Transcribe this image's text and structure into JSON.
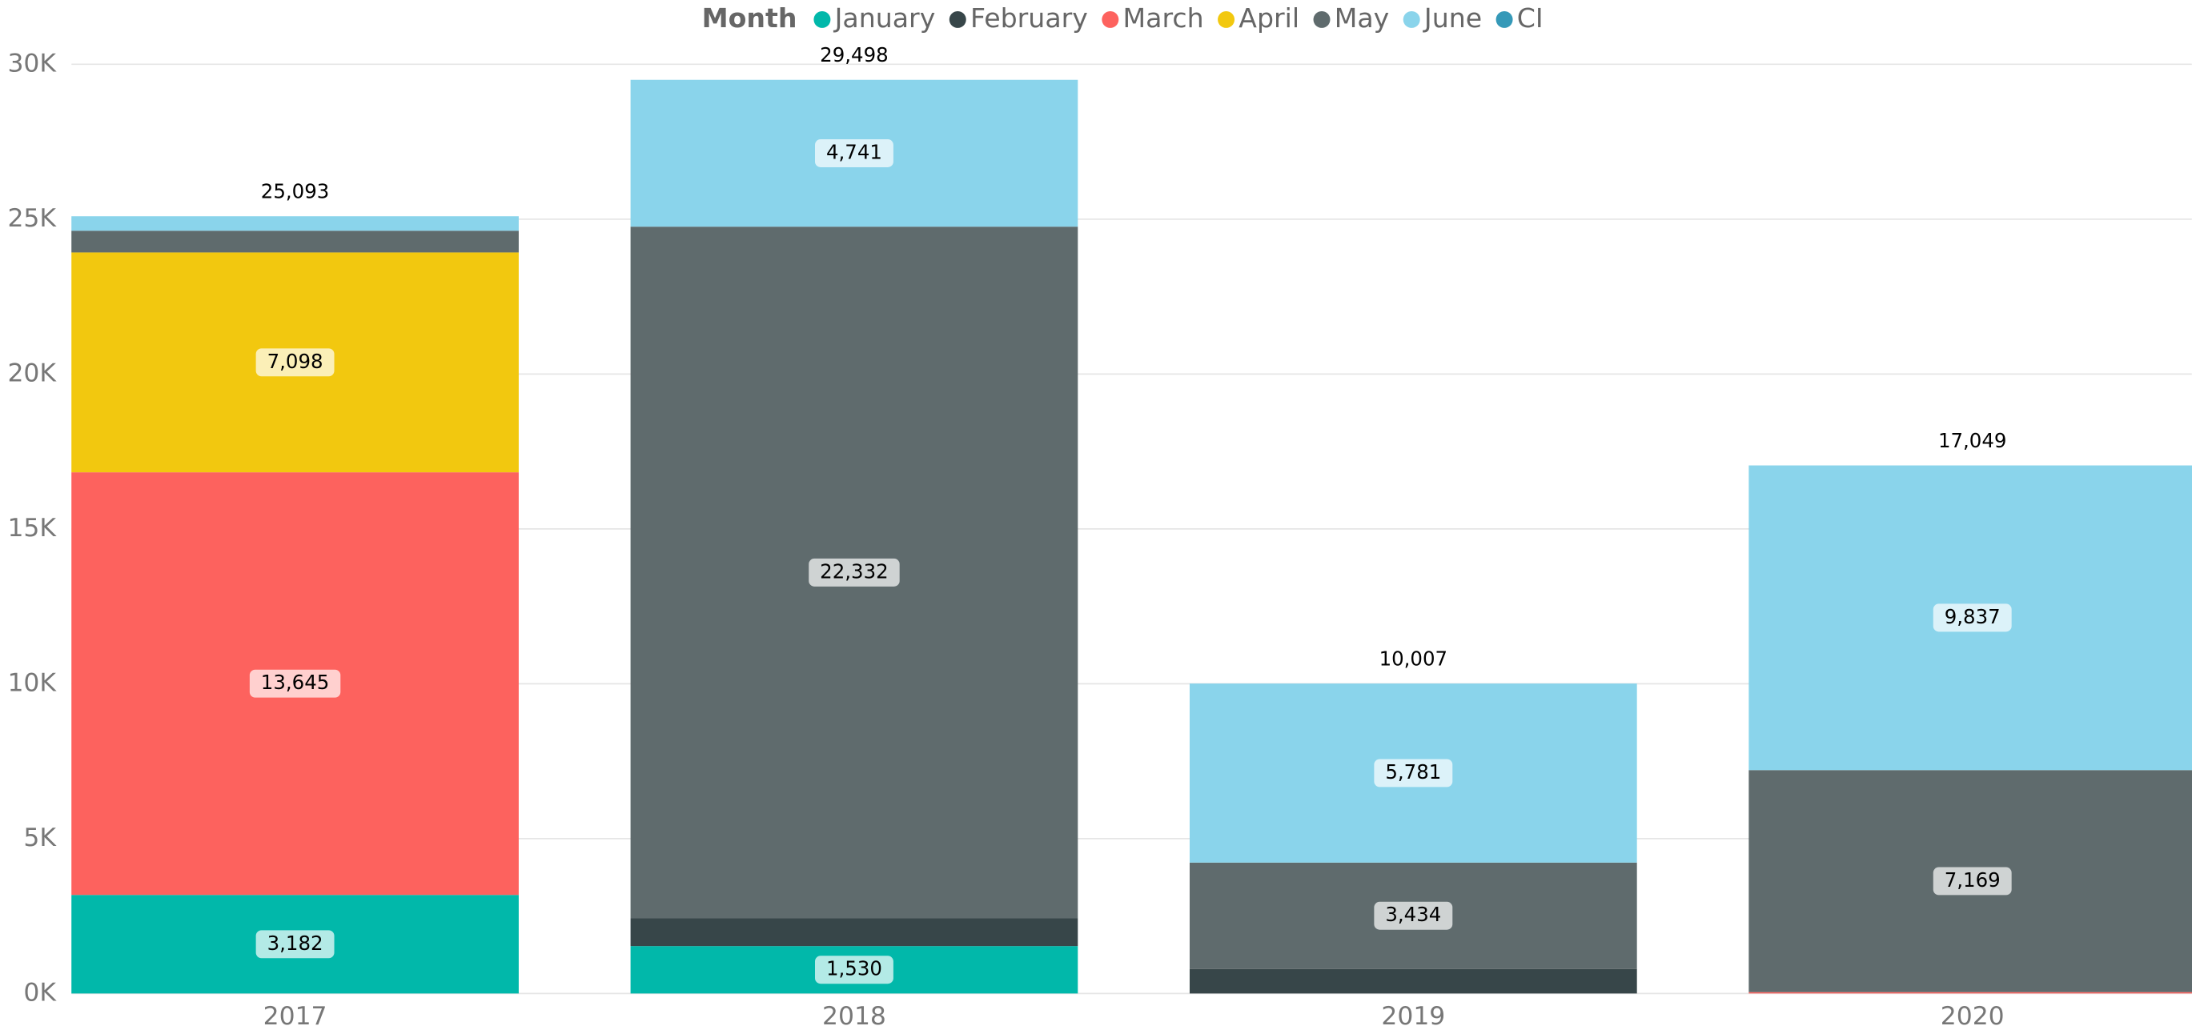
{
  "chart_data": {
    "type": "stacked_bar",
    "legend_title": "Month",
    "categories": [
      "2017",
      "2018",
      "2019",
      "2020"
    ],
    "series": [
      {
        "name": "January",
        "color": "#01B8AA",
        "values": [
          3182,
          1530,
          null,
          null
        ],
        "value_labels": [
          "3,182",
          "1,530",
          null,
          null
        ]
      },
      {
        "name": "February",
        "color": "#374649",
        "values": [
          null,
          895,
          792,
          null
        ],
        "value_labels": [
          null,
          null,
          null,
          null
        ]
      },
      {
        "name": "March",
        "color": "#FD625E",
        "values": [
          13645,
          null,
          null,
          43
        ],
        "value_labels": [
          "13,645",
          null,
          null,
          null
        ]
      },
      {
        "name": "April",
        "color": "#F2C80F",
        "values": [
          7098,
          null,
          null,
          null
        ],
        "value_labels": [
          "7,098",
          null,
          null,
          null
        ]
      },
      {
        "name": "May",
        "color": "#5F6B6D",
        "values": [
          700,
          22332,
          3434,
          7169
        ],
        "value_labels": [
          null,
          "22,332",
          "3,434",
          "7,169"
        ]
      },
      {
        "name": "June",
        "color": "#8AD4EB",
        "values": [
          468,
          4741,
          5781,
          9837
        ],
        "value_labels": [
          null,
          "4,741",
          "5,781",
          "9,837"
        ]
      },
      {
        "name": "CI",
        "color": "#3599B8",
        "values": [
          null,
          null,
          null,
          null
        ],
        "value_labels": [
          null,
          null,
          null,
          null
        ]
      }
    ],
    "totals": [
      25093,
      29498,
      10007,
      17049
    ],
    "total_labels": [
      "25,093",
      "29,498",
      "10,007",
      "17,049"
    ],
    "ylim": [
      0,
      30000
    ],
    "yticks": [
      {
        "value": 0,
        "label": "0K"
      },
      {
        "value": 5000,
        "label": "5K"
      },
      {
        "value": 10000,
        "label": "10K"
      },
      {
        "value": 15000,
        "label": "15K"
      },
      {
        "value": 20000,
        "label": "20K"
      },
      {
        "value": 25000,
        "label": "25K"
      },
      {
        "value": 30000,
        "label": "30K"
      }
    ],
    "grid": true
  }
}
